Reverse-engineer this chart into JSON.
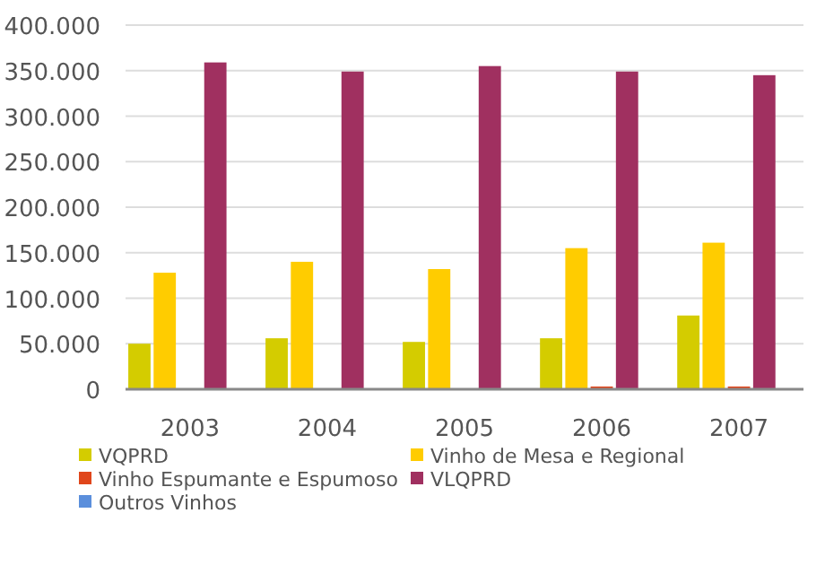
{
  "chart_data": {
    "type": "bar",
    "categories": [
      "2003",
      "2004",
      "2005",
      "2006",
      "2007"
    ],
    "series": [
      {
        "name": "VQPRD",
        "color": "#d4cc00",
        "values": [
          50000,
          56000,
          52000,
          56000,
          81000
        ]
      },
      {
        "name": "Vinho de Mesa e Regional",
        "color": "#ffcc00",
        "values": [
          128000,
          140000,
          132000,
          155000,
          161000
        ]
      },
      {
        "name": "Vinho Espumante e Espumoso",
        "color": "#e0461b",
        "values": [
          0,
          0,
          0,
          3000,
          3000
        ]
      },
      {
        "name": "VLQPRD",
        "color": "#a03060",
        "values": [
          359000,
          349000,
          355000,
          349000,
          345000
        ]
      },
      {
        "name": "Outros Vinhos",
        "color": "#5b8fdc",
        "values": [
          0,
          0,
          0,
          0,
          0
        ]
      }
    ],
    "ylim": [
      0,
      400000
    ],
    "yticks": [
      {
        "value": 0,
        "label": "0"
      },
      {
        "value": 50000,
        "label": "50.000"
      },
      {
        "value": 100000,
        "label": "100.000"
      },
      {
        "value": 150000,
        "label": "150.000"
      },
      {
        "value": 200000,
        "label": "200.000"
      },
      {
        "value": 250000,
        "label": "250.000"
      },
      {
        "value": 300000,
        "label": "300.000"
      },
      {
        "value": 350000,
        "label": "350.000"
      },
      {
        "value": 400000,
        "label": "400.000"
      }
    ],
    "grid": "y",
    "legend": "bottom"
  }
}
